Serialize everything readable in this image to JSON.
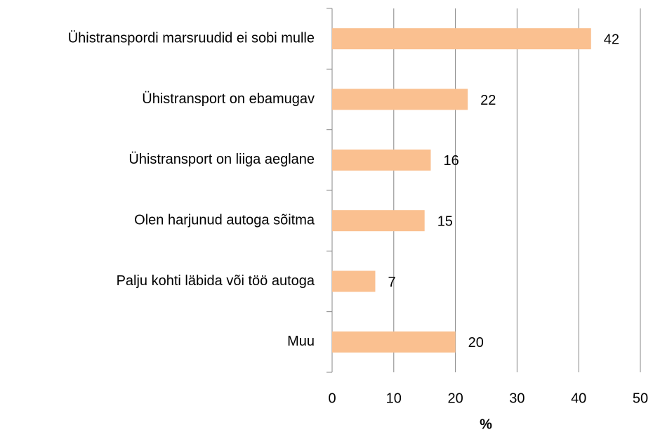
{
  "chart_data": {
    "type": "hbar",
    "categories": [
      "Ühistranspordi marsruudid ei sobi mulle",
      "Ühistransport on ebamugav",
      "Ühistransport on liiga aeglane",
      "Olen harjunud autoga sõitma",
      "Palju kohti läbida või töö autoga",
      "Muu"
    ],
    "values": [
      42,
      22,
      16,
      15,
      7,
      20
    ],
    "color": "#fac090",
    "xlabel": "%",
    "xlim": [
      0,
      50
    ],
    "xticks": [
      0,
      10,
      20,
      30,
      40,
      50
    ],
    "grid": true
  }
}
